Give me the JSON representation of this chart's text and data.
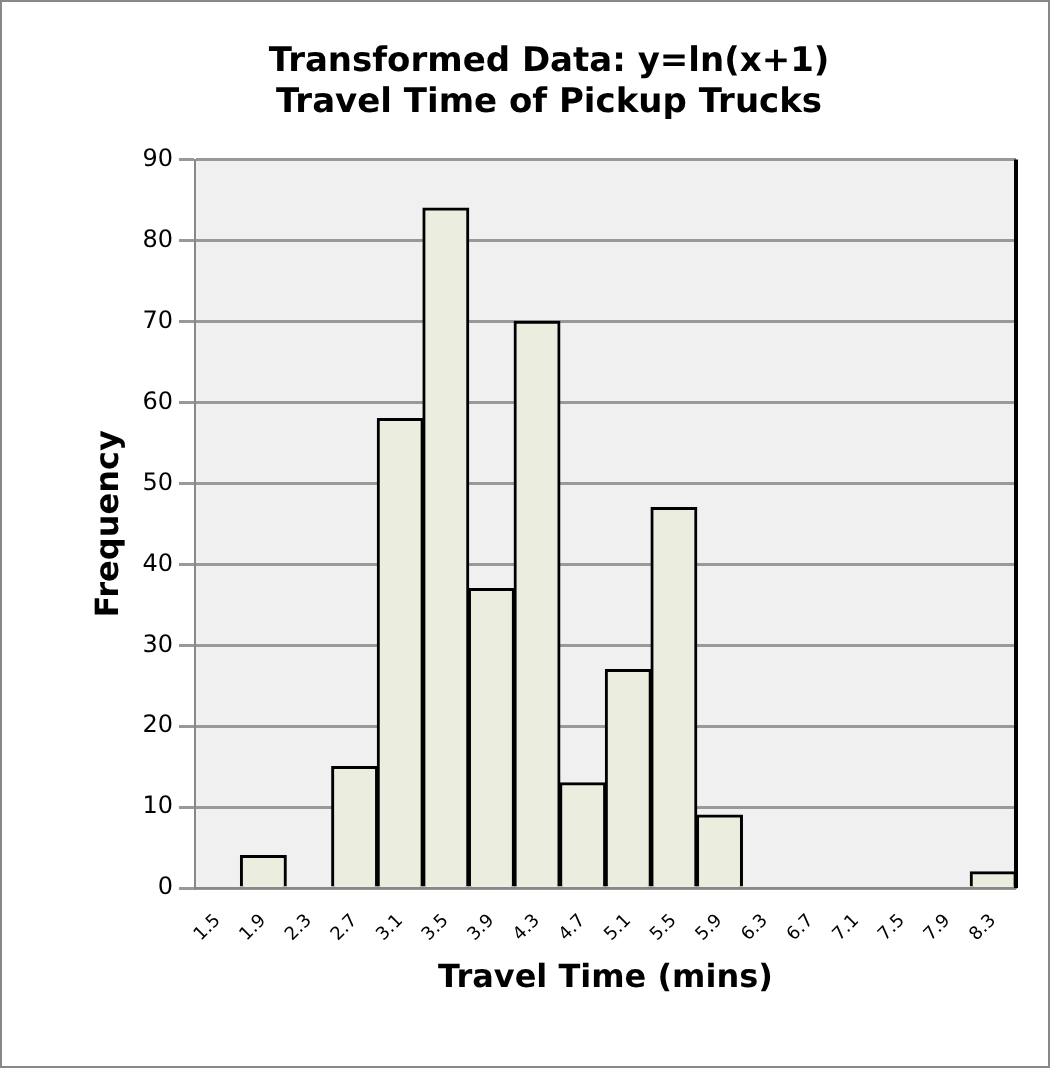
{
  "chart_data": {
    "type": "bar",
    "title": [
      "Transformed Data: y=ln(x+1)",
      "Travel Time of Pickup Trucks"
    ],
    "xlabel": "Travel Time (mins)",
    "ylabel": "Frequency",
    "categories": [
      "1.5",
      "1.9",
      "2.3",
      "2.7",
      "3.1",
      "3.5",
      "3.9",
      "4.3",
      "4.7",
      "5.1",
      "5.5",
      "5.9",
      "6.3",
      "6.7",
      "7.1",
      "7.5",
      "7.9",
      "8.3"
    ],
    "values": [
      0,
      4,
      0,
      15,
      58,
      84,
      37,
      70,
      13,
      27,
      47,
      9,
      0,
      0,
      0,
      0,
      0,
      2
    ],
    "color": "#ebeedf",
    "ylim": [
      0,
      90
    ],
    "yticks": [
      0,
      10,
      20,
      30,
      40,
      50,
      60,
      70,
      80,
      90
    ],
    "grid": "y",
    "legend": false
  }
}
